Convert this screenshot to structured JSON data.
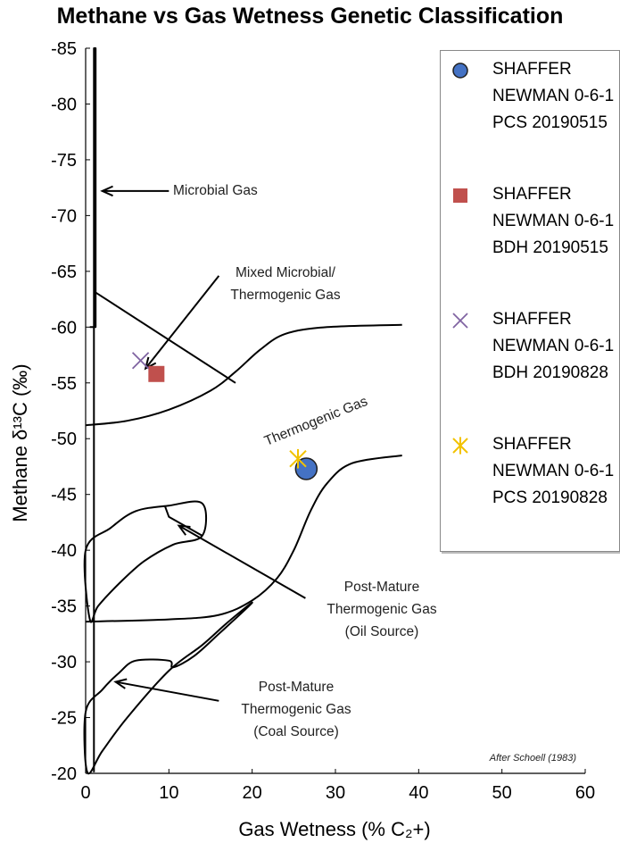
{
  "chart_data": {
    "type": "scatter",
    "title": "Methane vs Gas Wetness Genetic Classification",
    "xlabel": "Gas Wetness (% C₂+)",
    "ylabel": "Methane δ¹³C (‰)",
    "xlim": [
      0,
      60
    ],
    "ylim": [
      -20,
      -85
    ],
    "x_ticks": [
      "0",
      "10",
      "20",
      "30",
      "40",
      "50",
      "60"
    ],
    "y_ticks": [
      "-85",
      "-80",
      "-75",
      "-70",
      "-65",
      "-60",
      "-55",
      "-50",
      "-45",
      "-40",
      "-35",
      "-30",
      "-25",
      "-20"
    ],
    "grid": false,
    "legend_position": "top-right",
    "series": [
      {
        "name": "SHAFFER NEWMAN 0-6-1 PCS 20190515",
        "marker": "circle",
        "color": "#4472C4",
        "points": [
          {
            "x": 26.5,
            "y": -47.3
          }
        ]
      },
      {
        "name": "SHAFFER NEWMAN 0-6-1 BDH 20190515",
        "marker": "square",
        "color": "#C0504D",
        "points": [
          {
            "x": 8.5,
            "y": -55.8
          }
        ]
      },
      {
        "name": "SHAFFER NEWMAN 0-6-1 BDH 20190828",
        "marker": "x",
        "color": "#8064A2",
        "points": [
          {
            "x": 6.6,
            "y": -57.0
          }
        ]
      },
      {
        "name": "SHAFFER NEWMAN 0-6-1 PCS 20190828",
        "marker": "star",
        "color": "#F2C200",
        "points": [
          {
            "x": 25.5,
            "y": -48.2
          }
        ]
      }
    ],
    "annotations": {
      "microbial": "Microbial Gas",
      "mixed_1": "Mixed Microbial/",
      "mixed_2": "Thermogenic Gas",
      "thermogenic": "Thermogenic Gas",
      "oil_1": "Post-Mature",
      "oil_2": "Thermogenic Gas",
      "oil_3": "(Oil Source)",
      "coal_1": "Post-Mature",
      "coal_2": "Thermogenic Gas",
      "coal_3": "(Coal Source)",
      "credit": "After Schoell (1983)"
    },
    "field_boundaries": [
      {
        "name": "microbial-field-boundary",
        "closed": false,
        "points": [
          [
            1,
            -20.1
          ],
          [
            1,
            -85
          ],
          [
            1.2,
            -85
          ],
          [
            1.2,
            -60
          ],
          [
            0.5,
            -60
          ]
        ]
      },
      {
        "name": "thermogenic-upper-boundary",
        "closed": false,
        "points": [
          [
            0,
            -51.2
          ],
          [
            5,
            -51.6
          ],
          [
            10,
            -52.6
          ],
          [
            15,
            -54.3
          ],
          [
            18,
            -56
          ],
          [
            21,
            -58
          ],
          [
            24,
            -59.4
          ],
          [
            29,
            -60
          ],
          [
            38,
            -60.2
          ]
        ]
      },
      {
        "name": "mixed-field-divider",
        "closed": false,
        "points": [
          [
            1,
            -63.2
          ],
          [
            18,
            -55
          ]
        ]
      },
      {
        "name": "thermogenic-lower-boundary",
        "closed": false,
        "points": [
          [
            0,
            -33.6
          ],
          [
            10,
            -33.8
          ],
          [
            16,
            -34.2
          ],
          [
            20,
            -35.5
          ],
          [
            23,
            -37.5
          ],
          [
            25,
            -40
          ],
          [
            27,
            -43.5
          ],
          [
            29,
            -46
          ],
          [
            32,
            -47.8
          ],
          [
            38,
            -48.5
          ]
        ]
      },
      {
        "name": "oil-source-field-boundary",
        "closed": true,
        "points": [
          [
            0,
            -40
          ],
          [
            3,
            -42
          ],
          [
            6,
            -43.5
          ],
          [
            10,
            -44
          ],
          [
            14,
            -44.2
          ],
          [
            14,
            -41.3
          ],
          [
            10.5,
            -40.5
          ],
          [
            7,
            -39
          ],
          [
            4,
            -37
          ],
          [
            1.5,
            -35
          ],
          [
            0.5,
            -33.8
          ]
        ]
      },
      {
        "name": "oil-source-divider",
        "closed": false,
        "points": [
          [
            9.5,
            -44
          ],
          [
            10,
            -43
          ],
          [
            14,
            -41.3
          ]
        ]
      },
      {
        "name": "coal-source-field-boundary",
        "closed": true,
        "points": [
          [
            0,
            -25.5
          ],
          [
            2,
            -27.5
          ],
          [
            4,
            -29
          ],
          [
            6,
            -30.1
          ],
          [
            10,
            -30.1
          ],
          [
            10.5,
            -29.5
          ],
          [
            13,
            -30.5
          ],
          [
            16,
            -32.5
          ],
          [
            20,
            -35.3
          ],
          [
            17,
            -33.5
          ],
          [
            14,
            -31.5
          ],
          [
            10,
            -29.2
          ],
          [
            5,
            -25
          ],
          [
            2,
            -22
          ],
          [
            0.2,
            -20.1
          ]
        ]
      }
    ],
    "arrows": [
      {
        "name": "microbial-arrow",
        "from": [
          10,
          -72.2
        ],
        "to": [
          2,
          -72.2
        ]
      },
      {
        "name": "mixed-arrow",
        "from": [
          16,
          -64.6
        ],
        "to": [
          7.2,
          -56.3
        ]
      },
      {
        "name": "oil-arrow",
        "from": [
          26.4,
          -35.7
        ],
        "to": [
          11.2,
          -42.2
        ]
      },
      {
        "name": "coal-arrow",
        "from": [
          16,
          -26.5
        ],
        "to": [
          3.6,
          -28.2
        ]
      }
    ]
  }
}
